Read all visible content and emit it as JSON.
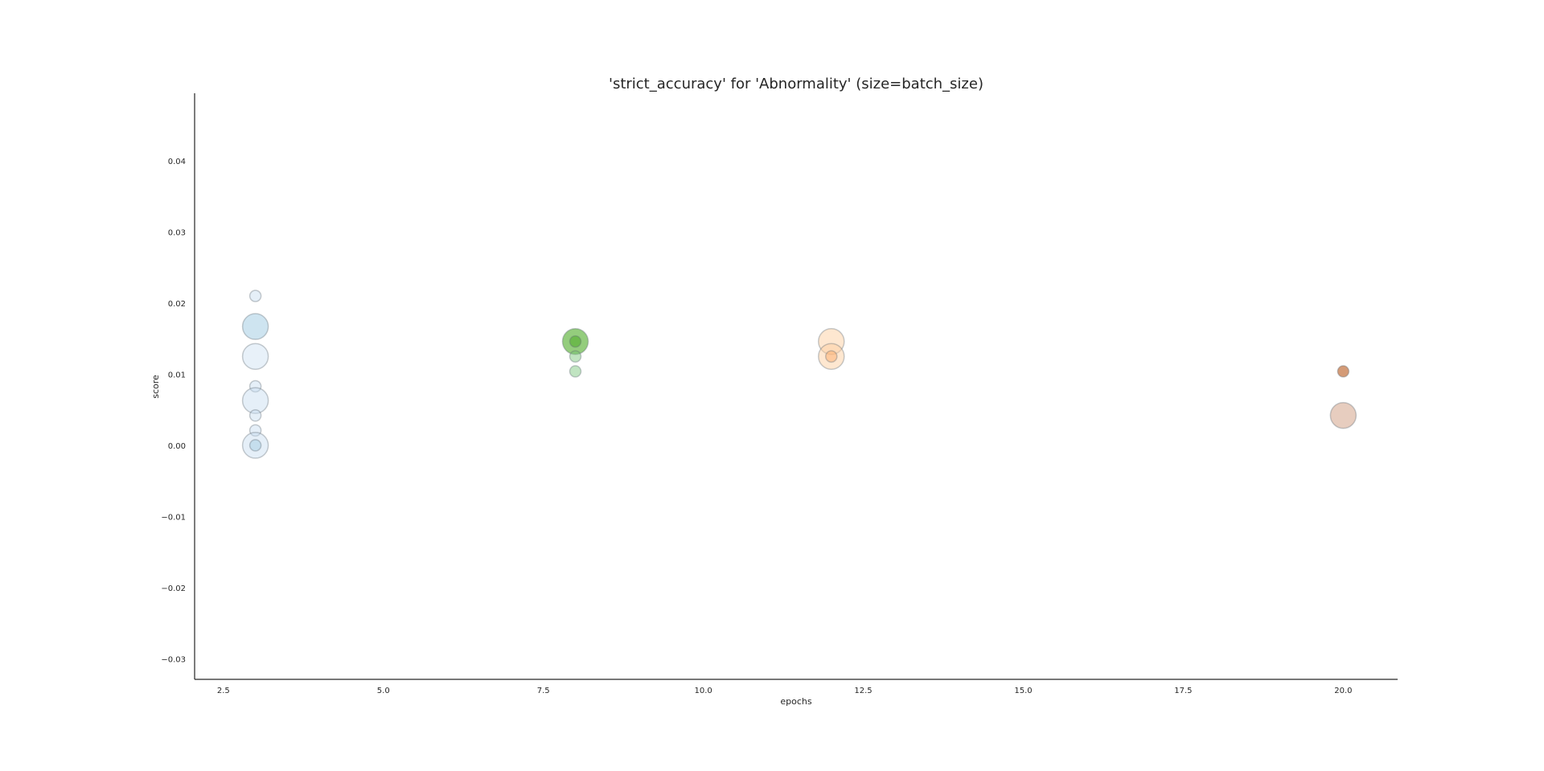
{
  "chart_data": {
    "type": "scatter",
    "title": "'strict_accuracy' for 'Abnormality' (size=batch_size)",
    "xlabel": "epochs",
    "ylabel": "score",
    "xlim": [
      2.05,
      20.85
    ],
    "ylim": [
      -0.0329,
      0.0495
    ],
    "xticks": [
      "2.5",
      "5.0",
      "7.5",
      "10.0",
      "12.5",
      "15.0",
      "17.5",
      "20.0"
    ],
    "yticks": [
      "0.04",
      "0.03",
      "0.02",
      "0.01",
      "0.00",
      "−0.01",
      "−0.02",
      "−0.03"
    ],
    "grid": false,
    "legend": "none",
    "marker_size_encoding": "batch_size",
    "points": [
      {
        "x": 3,
        "y": 0.021,
        "size": "small",
        "color": "#c6dbef",
        "alpha": 0.45
      },
      {
        "x": 3,
        "y": 0.0167,
        "size": "large",
        "color": "#9ecae1",
        "alpha": 0.5
      },
      {
        "x": 3,
        "y": 0.0125,
        "size": "large",
        "color": "#c6dbef",
        "alpha": 0.4
      },
      {
        "x": 3,
        "y": 0.0083,
        "size": "small",
        "color": "#c6dbef",
        "alpha": 0.45
      },
      {
        "x": 3,
        "y": 0.0063,
        "size": "large",
        "color": "#c6dbef",
        "alpha": 0.45
      },
      {
        "x": 3,
        "y": 0.0042,
        "size": "small",
        "color": "#c6dbef",
        "alpha": 0.45
      },
      {
        "x": 3,
        "y": 0.0021,
        "size": "small",
        "color": "#c6dbef",
        "alpha": 0.45
      },
      {
        "x": 3,
        "y": 0.0,
        "size": "large",
        "color": "#c6dbef",
        "alpha": 0.45
      },
      {
        "x": 3,
        "y": 0.0,
        "size": "small",
        "color": "#9ecae1",
        "alpha": 0.45
      },
      {
        "x": 8,
        "y": 0.0146,
        "size": "large",
        "color": "#4dac26",
        "alpha": 0.6
      },
      {
        "x": 8,
        "y": 0.0146,
        "size": "small",
        "color": "#4dac26",
        "alpha": 0.55
      },
      {
        "x": 8,
        "y": 0.0125,
        "size": "small",
        "color": "#74c476",
        "alpha": 0.45
      },
      {
        "x": 8,
        "y": 0.0104,
        "size": "small",
        "color": "#74c476",
        "alpha": 0.45
      },
      {
        "x": 12,
        "y": 0.0146,
        "size": "large",
        "color": "#fdd0a2",
        "alpha": 0.5
      },
      {
        "x": 12,
        "y": 0.0125,
        "size": "large",
        "color": "#fdd0a2",
        "alpha": 0.5
      },
      {
        "x": 12,
        "y": 0.0125,
        "size": "small",
        "color": "#fdae6b",
        "alpha": 0.5
      },
      {
        "x": 20,
        "y": 0.0104,
        "size": "small",
        "color": "#c2703d",
        "alpha": 0.7
      },
      {
        "x": 20,
        "y": 0.0042,
        "size": "large",
        "color": "#d4a48a",
        "alpha": 0.55
      }
    ]
  }
}
